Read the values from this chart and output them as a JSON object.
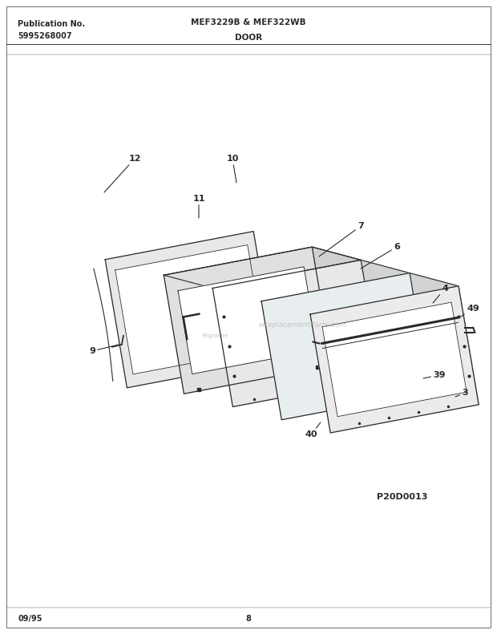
{
  "title_left_line1": "Publication No.",
  "title_left_line2": "5995268007",
  "title_center": "MEF3229B & MEF322WB",
  "title_sub": "DOOR",
  "footer_left": "09/95",
  "footer_center": "8",
  "diagram_id": "P20D0013",
  "background_color": "#ffffff",
  "line_color": "#2a2a2a",
  "watermark": "eReplacementParts.com"
}
